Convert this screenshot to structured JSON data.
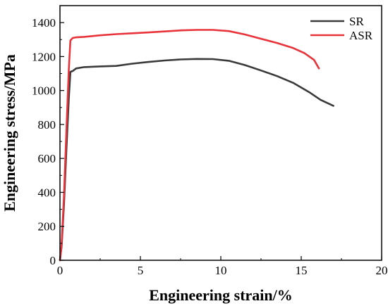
{
  "chart_data": {
    "type": "line",
    "xlabel": "Engineering strain/%",
    "ylabel": "Engineering stress/MPa",
    "xlim": [
      0,
      20
    ],
    "ylim": [
      0,
      1500
    ],
    "x_ticks": [
      0,
      5,
      10,
      15,
      20
    ],
    "y_ticks": [
      0,
      200,
      400,
      600,
      800,
      1000,
      1200,
      1400
    ],
    "grid": false,
    "legend_position": "top-right",
    "series": [
      {
        "name": "SR",
        "color": "#3a3a3a",
        "points": [
          [
            0,
            0
          ],
          [
            0.1,
            80
          ],
          [
            0.25,
            330
          ],
          [
            0.4,
            650
          ],
          [
            0.55,
            950
          ],
          [
            0.65,
            1110
          ],
          [
            0.8,
            1115
          ],
          [
            1.0,
            1130
          ],
          [
            1.5,
            1138
          ],
          [
            2.5,
            1142
          ],
          [
            3.5,
            1145
          ],
          [
            4.5,
            1158
          ],
          [
            5.5,
            1168
          ],
          [
            6.5,
            1177
          ],
          [
            7.5,
            1183
          ],
          [
            8.5,
            1186
          ],
          [
            9.5,
            1185
          ],
          [
            10.5,
            1175
          ],
          [
            11.5,
            1150
          ],
          [
            12.5,
            1118
          ],
          [
            13.5,
            1085
          ],
          [
            14.5,
            1045
          ],
          [
            15.5,
            990
          ],
          [
            16.2,
            945
          ],
          [
            17.0,
            910
          ]
        ]
      },
      {
        "name": "ASR",
        "color": "#e8333a",
        "points": [
          [
            0,
            0
          ],
          [
            0.1,
            90
          ],
          [
            0.25,
            380
          ],
          [
            0.4,
            760
          ],
          [
            0.55,
            1120
          ],
          [
            0.65,
            1295
          ],
          [
            0.8,
            1310
          ],
          [
            1.0,
            1313
          ],
          [
            1.5,
            1316
          ],
          [
            2.5,
            1325
          ],
          [
            3.5,
            1332
          ],
          [
            4.5,
            1337
          ],
          [
            5.5,
            1342
          ],
          [
            6.5,
            1348
          ],
          [
            7.5,
            1354
          ],
          [
            8.5,
            1357
          ],
          [
            9.5,
            1357
          ],
          [
            10.5,
            1350
          ],
          [
            11.5,
            1330
          ],
          [
            12.5,
            1305
          ],
          [
            13.5,
            1280
          ],
          [
            14.5,
            1250
          ],
          [
            15.2,
            1220
          ],
          [
            15.8,
            1180
          ],
          [
            16.1,
            1130
          ]
        ]
      }
    ]
  }
}
